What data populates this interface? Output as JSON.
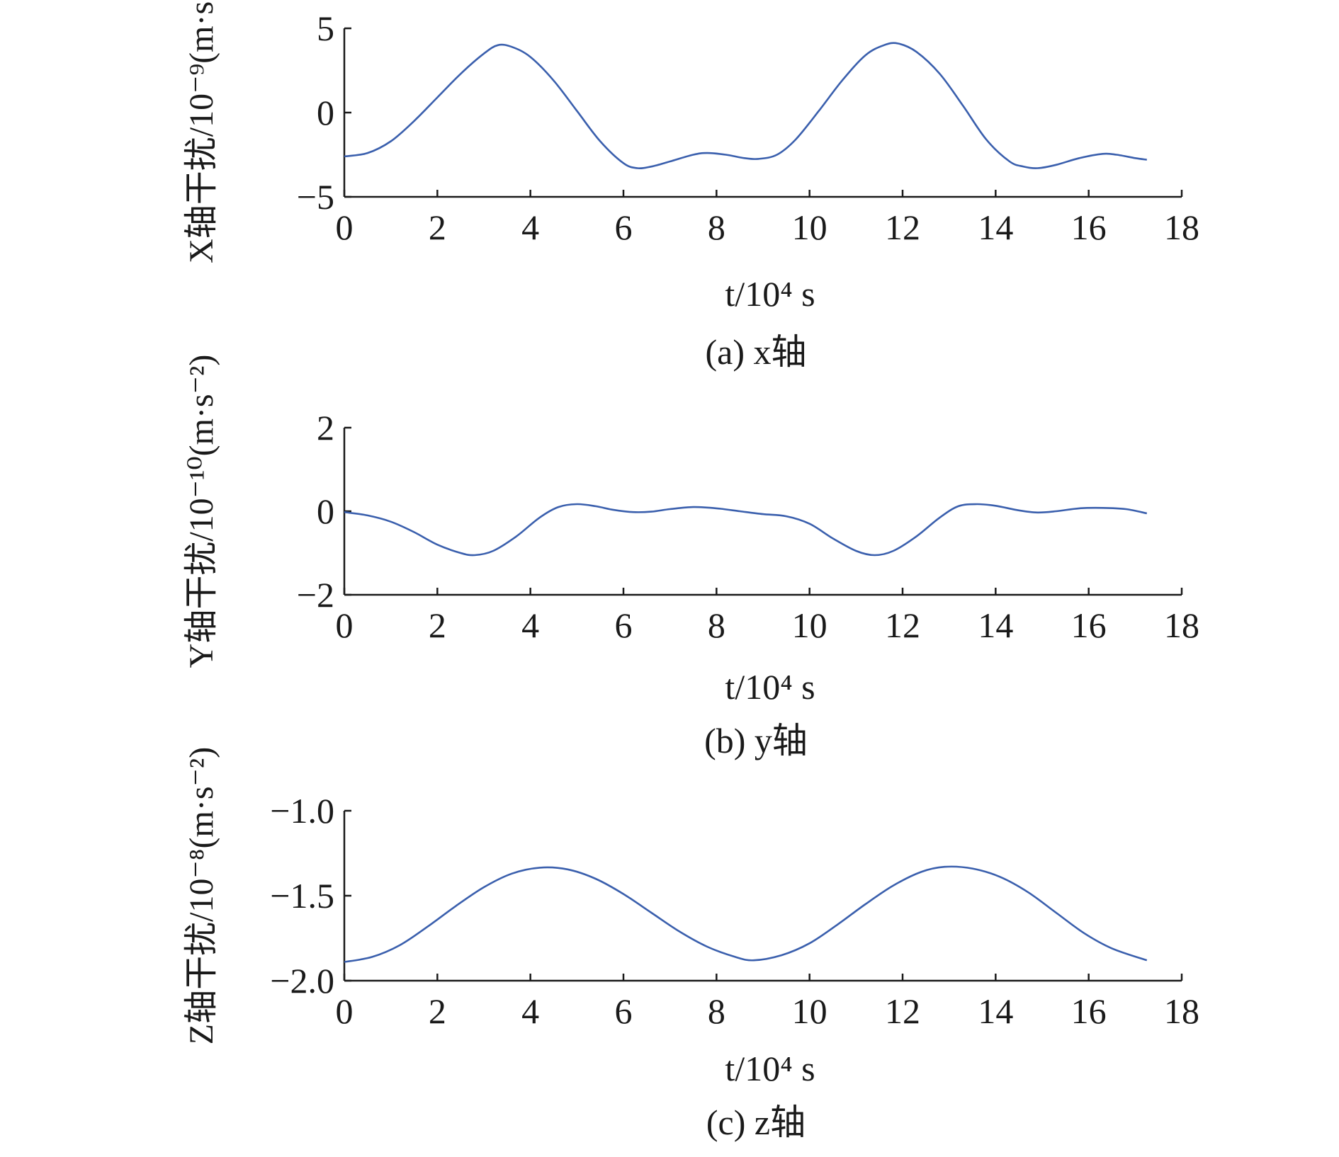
{
  "figure": {
    "panels": [
      {
        "caption": "(a) x轴",
        "ylabel": "X轴干扰/10⁻⁹(m·s⁻²)",
        "xlabel": "t/10⁴ s"
      },
      {
        "caption": "(b) y轴",
        "ylabel": "Y轴干扰/10⁻¹⁰(m·s⁻²)",
        "xlabel": "t/10⁴ s"
      },
      {
        "caption": "(c) z轴",
        "ylabel": "Z轴干扰/10⁻⁸(m·s⁻²)",
        "xlabel": "t/10⁴ s"
      }
    ]
  },
  "colors": {
    "line": "#3a5fad",
    "axis": "#1a1a1a"
  },
  "chart_data": [
    {
      "type": "line",
      "title": "(a) x轴",
      "xlabel": "t/10⁴ s",
      "ylabel": "X轴干扰/10⁻⁹(m·s⁻²)",
      "xlim": [
        0,
        18
      ],
      "ylim": [
        -5,
        5
      ],
      "xticks": [
        0,
        2,
        4,
        6,
        8,
        10,
        12,
        14,
        16,
        18
      ],
      "yticks": [
        -5,
        0,
        5
      ],
      "ytick_labels": [
        "−5",
        "0",
        "5"
      ],
      "grid": false,
      "series": [
        {
          "x": [
            0,
            0.5,
            1,
            1.5,
            2,
            2.5,
            3,
            3.3,
            3.6,
            4,
            4.5,
            5,
            5.5,
            6,
            6.3,
            6.6,
            7,
            7.5,
            7.8,
            8.2,
            8.6,
            8.9,
            9.3,
            9.7,
            10.2,
            10.7,
            11.2,
            11.6,
            11.9,
            12.3,
            12.8,
            13.3,
            13.8,
            14.3,
            14.6,
            14.9,
            15.3,
            15.8,
            16.3,
            16.6,
            17.0,
            17.25
          ],
          "y": [
            -2.6,
            -2.4,
            -1.7,
            -0.5,
            0.9,
            2.3,
            3.5,
            4.0,
            3.9,
            3.3,
            1.9,
            0.1,
            -1.7,
            -3.0,
            -3.3,
            -3.2,
            -2.9,
            -2.5,
            -2.4,
            -2.5,
            -2.7,
            -2.75,
            -2.5,
            -1.6,
            0.1,
            1.9,
            3.4,
            4.0,
            4.1,
            3.6,
            2.3,
            0.4,
            -1.6,
            -2.9,
            -3.2,
            -3.3,
            -3.1,
            -2.7,
            -2.45,
            -2.5,
            -2.7,
            -2.8
          ]
        }
      ]
    },
    {
      "type": "line",
      "title": "(b) y轴",
      "xlabel": "t/10⁴ s",
      "ylabel": "Y轴干扰/10⁻¹⁰(m·s⁻²)",
      "xlim": [
        0,
        18
      ],
      "ylim": [
        -2,
        2
      ],
      "xticks": [
        0,
        2,
        4,
        6,
        8,
        10,
        12,
        14,
        16,
        18
      ],
      "yticks": [
        -2,
        0,
        2
      ],
      "ytick_labels": [
        "−2",
        "0",
        "2"
      ],
      "grid": false,
      "series": [
        {
          "x": [
            0,
            0.5,
            1,
            1.5,
            2,
            2.5,
            2.8,
            3.2,
            3.7,
            4.2,
            4.6,
            5.0,
            5.4,
            5.8,
            6.2,
            6.6,
            7.0,
            7.5,
            8.0,
            8.5,
            9.0,
            9.5,
            10.0,
            10.5,
            11.0,
            11.4,
            11.8,
            12.3,
            12.8,
            13.2,
            13.6,
            14.0,
            14.5,
            14.9,
            15.3,
            15.8,
            16.3,
            16.8,
            17.25
          ],
          "y": [
            -0.02,
            -0.1,
            -0.25,
            -0.5,
            -0.8,
            -1.0,
            -1.05,
            -0.95,
            -0.6,
            -0.15,
            0.1,
            0.17,
            0.12,
            0.03,
            -0.02,
            -0.01,
            0.05,
            0.1,
            0.07,
            0.0,
            -0.07,
            -0.12,
            -0.3,
            -0.65,
            -0.95,
            -1.05,
            -0.95,
            -0.6,
            -0.15,
            0.12,
            0.17,
            0.13,
            0.02,
            -0.03,
            0.0,
            0.07,
            0.08,
            0.05,
            -0.05
          ]
        }
      ]
    },
    {
      "type": "line",
      "title": "(c) z轴",
      "xlabel": "t/10⁴ s",
      "ylabel": "Z轴干扰/10⁻⁸(m·s⁻²)",
      "xlim": [
        0,
        18
      ],
      "ylim": [
        -2.0,
        -1.0
      ],
      "xticks": [
        0,
        2,
        4,
        6,
        8,
        10,
        12,
        14,
        16,
        18
      ],
      "yticks": [
        -2.0,
        -1.5,
        -1.0
      ],
      "ytick_labels": [
        "−2.0",
        "−1.5",
        "−1.0"
      ],
      "grid": false,
      "series": [
        {
          "x": [
            0,
            0.6,
            1.2,
            1.8,
            2.4,
            3.0,
            3.6,
            4.2,
            4.8,
            5.4,
            6.0,
            6.6,
            7.2,
            7.8,
            8.4,
            8.8,
            9.4,
            10.0,
            10.6,
            11.2,
            11.8,
            12.4,
            12.9,
            13.5,
            14.1,
            14.7,
            15.3,
            15.9,
            16.5,
            17.25
          ],
          "y": [
            -1.89,
            -1.86,
            -1.79,
            -1.68,
            -1.56,
            -1.45,
            -1.37,
            -1.335,
            -1.345,
            -1.4,
            -1.49,
            -1.6,
            -1.71,
            -1.8,
            -1.86,
            -1.88,
            -1.85,
            -1.78,
            -1.67,
            -1.55,
            -1.44,
            -1.36,
            -1.33,
            -1.34,
            -1.39,
            -1.48,
            -1.6,
            -1.72,
            -1.81,
            -1.88
          ]
        }
      ]
    }
  ]
}
